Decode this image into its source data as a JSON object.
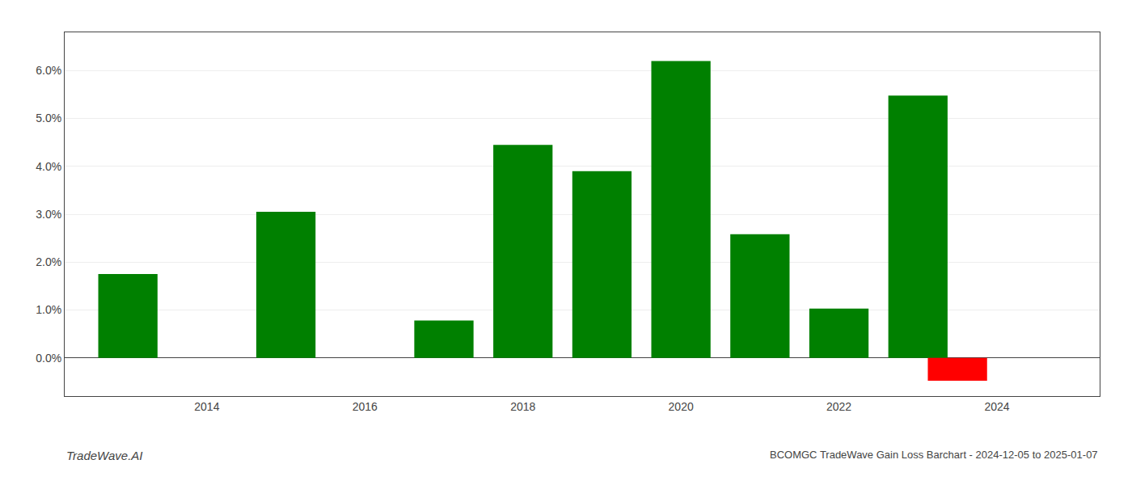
{
  "chart_data": {
    "type": "bar",
    "x": [
      2013,
      2015,
      2017,
      2018,
      2019,
      2020,
      2021,
      2022,
      2023,
      2023.5
    ],
    "values": [
      0.0175,
      0.0305,
      0.0078,
      0.0445,
      0.039,
      0.062,
      0.0258,
      0.0103,
      0.0548,
      -0.0048
    ],
    "colors": [
      "#008000",
      "#008000",
      "#008000",
      "#008000",
      "#008000",
      "#008000",
      "#008000",
      "#008000",
      "#008000",
      "#ff0000"
    ],
    "xlim": [
      2012.2,
      2025.3
    ],
    "xticks": [
      2014,
      2016,
      2018,
      2020,
      2022,
      2024
    ],
    "ylim": [
      -0.008,
      0.068
    ],
    "yticks": [
      {
        "value": 0.0,
        "label": "0.0%"
      },
      {
        "value": 0.01,
        "label": "1.0%"
      },
      {
        "value": 0.02,
        "label": "2.0%"
      },
      {
        "value": 0.03,
        "label": "3.0%"
      },
      {
        "value": 0.04,
        "label": "4.0%"
      },
      {
        "value": 0.05,
        "label": "5.0%"
      },
      {
        "value": 0.06,
        "label": "6.0%"
      }
    ],
    "grid": true,
    "annotations": [
      "TradeWave.AI",
      "BCOMGC TradeWave Gain Loss Barchart - 2024-12-05 to 2025-01-07"
    ]
  }
}
